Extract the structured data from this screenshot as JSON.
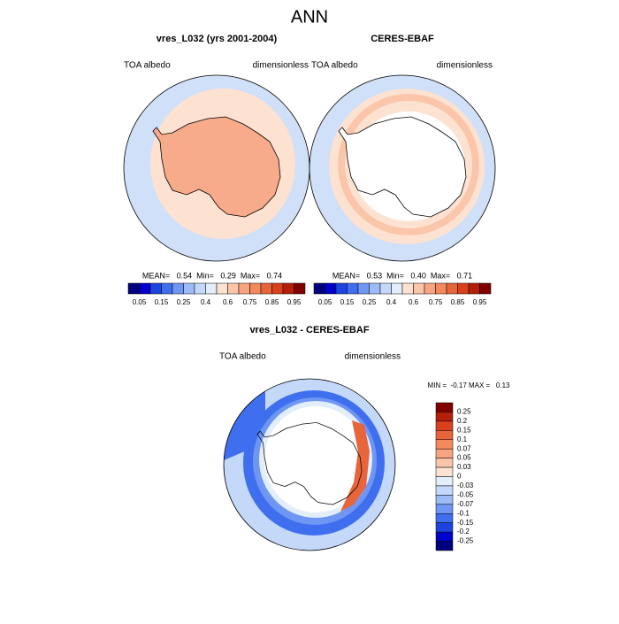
{
  "title": "ANN",
  "panels": [
    {
      "title": "vres_L032 (yrs 2001-2004)",
      "left_label": "TOA albedo",
      "right_label": "dimensionless",
      "stats": "MEAN=   0.54  Min=   0.29  Max=   0.74"
    },
    {
      "title": "CERES-EBAF",
      "left_label": "TOA albedo",
      "right_label": "dimensionless",
      "stats": "MEAN=   0.53  Min=   0.40  Max=   0.71"
    },
    {
      "title": "vres_L032 - CERES-EBAF",
      "left_label": "TOA albedo",
      "right_label": "dimensionless",
      "stats": "MIN =  -0.17 MAX =   0.13"
    }
  ],
  "colorbar_top": {
    "levels": [
      0.05,
      0.15,
      0.25,
      0.4,
      0.6,
      0.75,
      0.85,
      0.95
    ],
    "colors": [
      "#00007f",
      "#0000cc",
      "#1d43e0",
      "#3f6fee",
      "#6f96f3",
      "#9dbbf6",
      "#c4d8f9",
      "#e3eefc",
      "#fde2d2",
      "#fbc5aa",
      "#f7a580",
      "#f28a5e",
      "#e8643a",
      "#d9401c",
      "#b51f0a",
      "#800000"
    ]
  },
  "colorbar_diff": {
    "levels": [
      0.25,
      0.2,
      0.15,
      0.1,
      0.07,
      0.05,
      0.03,
      0,
      -0.03,
      -0.05,
      -0.07,
      -0.1,
      -0.15,
      -0.2,
      -0.25
    ],
    "colors": [
      "#800000",
      "#b51f0a",
      "#d9401c",
      "#e8643a",
      "#f28a5e",
      "#f7a580",
      "#fbc5aa",
      "#fde2d2",
      "#e3eefc",
      "#c4d8f9",
      "#9dbbf6",
      "#6f96f3",
      "#3f6fee",
      "#1d43e0",
      "#0000cc",
      "#00007f"
    ]
  }
}
